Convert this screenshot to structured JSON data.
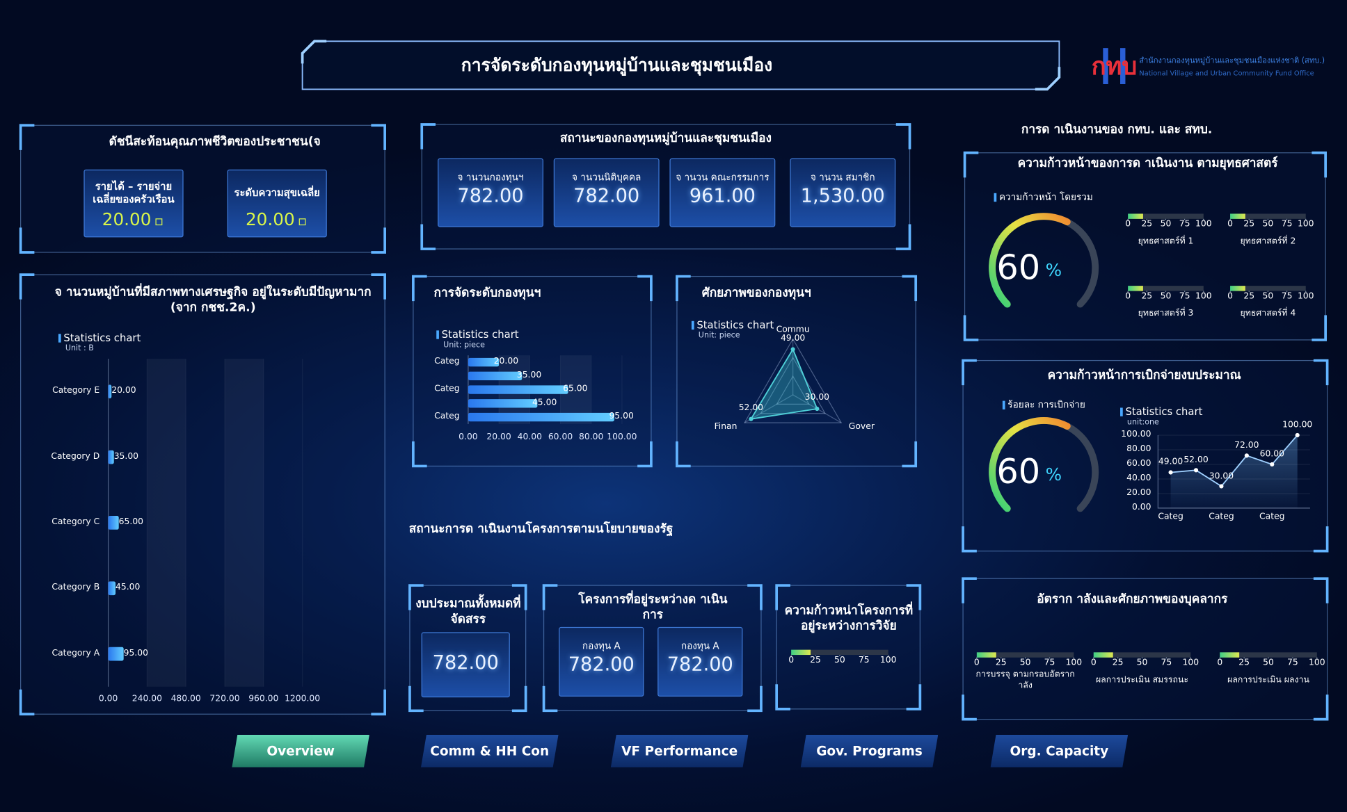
{
  "header": {
    "title": "การจัดระดับกองทุนหมู่บ้านและชุมชนเมือง",
    "logo": "กทบ",
    "org_th": "สำนักงานกองทุนหมู่บ้านและชุมชนเมืองแห่งชาติ (สทบ.)",
    "org_en": "National Village and Urban Community Fund Office"
  },
  "life_quality": {
    "title": "ดัชนีสะท้อนคุณภาพชีวิตของประชาชน(จ",
    "cards": [
      {
        "label": "รายได้ – รายจ่ายเฉลี่ยของครัวเรือน",
        "value": "20.00"
      },
      {
        "label": "ระดับความสุขเฉลี่ย",
        "value": "20.00"
      }
    ]
  },
  "fund_status": {
    "title": "สถานะของกองทุนหมู่บ้านและชุมชนเมือง",
    "cards": [
      {
        "label": "จ านวนกองทุนฯ",
        "value": "782.00"
      },
      {
        "label": "จ านวนนิติบุคคล",
        "value": "782.00"
      },
      {
        "label": "จ านวน คณะกรรมการ",
        "value": "961.00"
      },
      {
        "label": "จ านวน สมาชิก",
        "value": "1,530.00"
      }
    ]
  },
  "operations_title": "การด าเนินงานของ กทบ. และ สทบ.",
  "policy": {
    "title": "สถานะการด าเนินงานโครงการตามนโยบายของรัฐ",
    "budget": {
      "label": "งบประมาณทั้งหมดที่จัดสรร",
      "value": "782.00"
    },
    "projects": {
      "label": "โครงการที่อยู่ระหว่างด าเนินการ",
      "cards": [
        {
          "label": "กองทุน A",
          "value": "782.00"
        },
        {
          "label": "กองทุน A",
          "value": "782.00"
        }
      ]
    }
  },
  "nav": [
    {
      "label": "Overview",
      "active": true
    },
    {
      "label": "Comm & HH Con"
    },
    {
      "label": "VF Performance"
    },
    {
      "label": "Gov. Programs"
    },
    {
      "label": "Org. Capacity"
    }
  ],
  "chart_data": [
    {
      "type": "bar",
      "orientation": "horizontal",
      "title": "จ านวนหมู่บ้านที่มีสภาพทางเศรษฐกิจ  อยู่ในระดับมีปัญหามาก (จาก กชช.2ค.)",
      "legend": "Statistics chart",
      "unit": "Unit : B",
      "categories": [
        "Category E",
        "Category D",
        "Category C",
        "Category B",
        "Category A"
      ],
      "values": [
        20,
        35,
        65,
        45,
        95
      ],
      "value_labels": [
        "20.00",
        "35.00",
        "65.00",
        "45.00",
        "95.00"
      ],
      "xlim": [
        0,
        1200
      ],
      "xticks": [
        {
          "value": 0,
          "label": "0.00"
        },
        {
          "value": 240,
          "label": "240.00"
        },
        {
          "value": 480,
          "label": "480.00"
        },
        {
          "value": 720,
          "label": "720.00"
        },
        {
          "value": 960,
          "label": "960.00"
        },
        {
          "value": 1200,
          "label": "1200.00"
        }
      ],
      "color": "#4aa8ff"
    },
    {
      "type": "bar",
      "orientation": "horizontal",
      "title": "การจัดระดับกองทุนฯ",
      "legend": "Statistics chart",
      "unit": "Unit: piece",
      "categories": [
        "Categ",
        null,
        "Categ",
        null,
        "Categ"
      ],
      "values": [
        20,
        35,
        65,
        45,
        95
      ],
      "value_labels": [
        "20.00",
        "35.00",
        "65.00",
        "45.00",
        "95.00"
      ],
      "xlim": [
        0,
        100
      ],
      "xticks": [
        {
          "value": 0,
          "label": "0.00"
        },
        {
          "value": 20,
          "label": "20.00"
        },
        {
          "value": 40,
          "label": "40.00"
        },
        {
          "value": 60,
          "label": "60.00"
        },
        {
          "value": 80,
          "label": "80.00"
        },
        {
          "value": 100,
          "label": "100.00"
        }
      ],
      "color": "#3f9cf5"
    },
    {
      "type": "radar",
      "title": "ศักยภาพของกองทุนฯ",
      "legend": "Statistics chart",
      "unit": "Unit: piece",
      "categories": [
        "Commu",
        "Gover",
        "Finan"
      ],
      "values": [
        49,
        30,
        52
      ],
      "value_labels": [
        "49.00",
        "30.00",
        "52.00"
      ],
      "rlim": [
        0,
        60
      ],
      "color": "#4fd0d8"
    },
    {
      "type": "gauge",
      "title": "ความก้าวหน้าของการด าเนินงาน ตามยุทธศาสตร์",
      "label": "ความก้าวหน้า โดยรวม",
      "value": 60,
      "unit": "%"
    },
    {
      "type": "progress",
      "items": [
        {
          "name": "ยุทธศาสตร์ที่ 1",
          "value": 20
        },
        {
          "name": "ยุทธศาสตร์ที่ 2",
          "value": 20
        },
        {
          "name": "ยุทธศาสตร์ที่ 3",
          "value": 20
        },
        {
          "name": "ยุทธศาสตร์ที่ 4",
          "value": 20
        }
      ],
      "xlim": [
        0,
        100
      ],
      "xticks": [
        0,
        25,
        50,
        75,
        100
      ]
    },
    {
      "type": "gauge",
      "title": "ความก้าวหน้าการเบิกจ่ายงบประมาณ",
      "label": "ร้อยละ การเบิกจ่าย",
      "value": 60,
      "unit": "%"
    },
    {
      "type": "line",
      "legend": "Statistics chart",
      "unit": "unit:one",
      "categories": [
        "Categ",
        null,
        "Categ",
        null,
        "Categ",
        null
      ],
      "values": [
        49,
        52,
        30,
        72,
        60,
        100
      ],
      "value_labels": [
        "49.00",
        "52.00",
        "30.00",
        "72.00",
        "60.00",
        "100.00"
      ],
      "ylim": [
        0,
        100
      ],
      "yticks": [
        {
          "value": 0,
          "label": "0.00"
        },
        {
          "value": 20,
          "label": "20.00"
        },
        {
          "value": 40,
          "label": "40.00"
        },
        {
          "value": 60,
          "label": "60.00"
        },
        {
          "value": 80,
          "label": "80.00"
        },
        {
          "value": 100,
          "label": "100.00"
        }
      ],
      "color": "#ffffff"
    },
    {
      "type": "progress",
      "title": "ความก้าวหน่าโครงการที่อยู่ระหว่างการวิจัย",
      "items": [
        {
          "value": 20
        }
      ],
      "xlim": [
        0,
        100
      ],
      "xticks": [
        0,
        25,
        50,
        75,
        100
      ]
    },
    {
      "type": "progress",
      "title": "อัตราก าลังและศักยภาพของบุคลากร",
      "items": [
        {
          "name": "การบรรจุ ตามกรอบอัตราก าลัง",
          "value": 20
        },
        {
          "name": "ผลการประเมิน สมรรถนะ",
          "value": 20
        },
        {
          "name": "ผลการประเมิน ผลงาน",
          "value": 20
        }
      ],
      "xlim": [
        0,
        100
      ],
      "xticks": [
        0,
        25,
        50,
        75,
        100
      ]
    }
  ]
}
